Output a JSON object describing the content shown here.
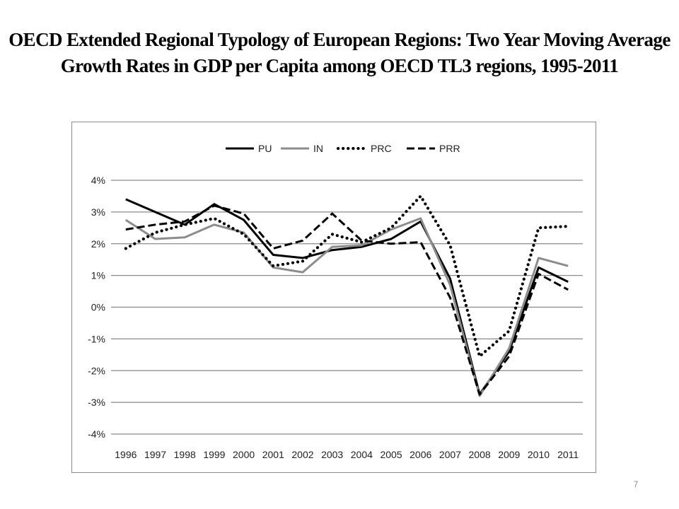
{
  "slide": {
    "title_line1": "OECD Extended Regional Typology of European Regions: Two Year Moving Average",
    "title_line2": "Growth Rates in GDP per Capita among OECD TL3 regions, 1995-2011",
    "page_number": "7"
  },
  "chart_data": {
    "type": "line",
    "title": "",
    "xlabel": "",
    "ylabel": "",
    "x": [
      "1996",
      "1997",
      "1998",
      "1999",
      "2000",
      "2001",
      "2002",
      "2003",
      "2004",
      "2005",
      "2006",
      "2007",
      "2008",
      "2009",
      "2010",
      "2011"
    ],
    "y_ticks": [
      "4%",
      "3%",
      "2%",
      "1%",
      "0%",
      "-1%",
      "-2%",
      "-3%",
      "-4%"
    ],
    "ylim": [
      -4,
      4
    ],
    "grid": true,
    "legend_position": "top",
    "series": [
      {
        "name": "PU",
        "color": "#000000",
        "style": "solid",
        "values": [
          3.4,
          3.0,
          2.6,
          3.25,
          2.75,
          1.65,
          1.55,
          1.8,
          1.9,
          2.15,
          2.7,
          0.9,
          -2.75,
          -1.4,
          1.25,
          0.8
        ]
      },
      {
        "name": "IN",
        "color": "#8c8c8c",
        "style": "solid",
        "values": [
          2.75,
          2.15,
          2.2,
          2.6,
          2.35,
          1.25,
          1.1,
          1.9,
          1.95,
          2.45,
          2.8,
          0.7,
          -2.8,
          -1.3,
          1.55,
          1.3
        ]
      },
      {
        "name": "PRC",
        "color": "#000000",
        "style": "dotted",
        "values": [
          1.85,
          2.35,
          2.6,
          2.8,
          2.3,
          1.3,
          1.45,
          2.3,
          2.05,
          2.5,
          3.5,
          1.95,
          -1.55,
          -0.75,
          2.5,
          2.55
        ]
      },
      {
        "name": "PRR",
        "color": "#000000",
        "style": "dashed",
        "values": [
          2.45,
          2.6,
          2.7,
          3.2,
          2.95,
          1.85,
          2.1,
          2.95,
          2.1,
          2.0,
          2.05,
          0.3,
          -2.75,
          -1.55,
          1.05,
          0.55
        ]
      }
    ]
  }
}
